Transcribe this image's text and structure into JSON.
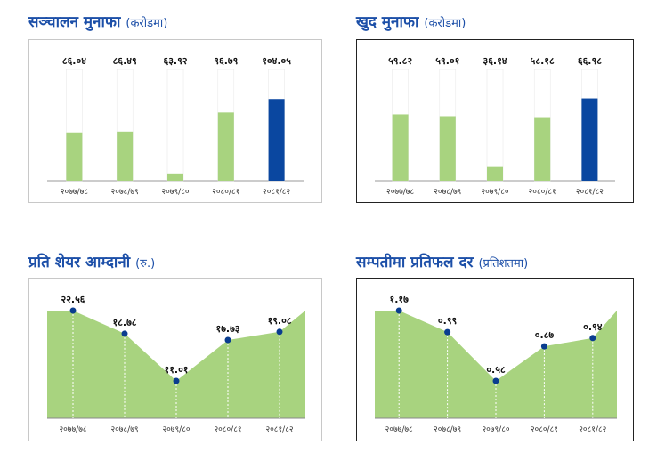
{
  "colors": {
    "title": "#1c4fa8",
    "green": "#a8d37f",
    "blue": "#0a47a0",
    "dot": "#0a3d8f"
  },
  "chart_data": [
    {
      "type": "bar",
      "title": "सञ्चालन मुनाफा",
      "subtitle": "(करोडमा)",
      "categories": [
        "२०७७/७८",
        "२०७८/७९",
        "२०७९/८०",
        "२०८०/८१",
        "२०८१/८२"
      ],
      "values": [
        86.04,
        86.49,
        63.92,
        96.79,
        104.05
      ],
      "labels": [
        "८६.०४",
        "८६.४९",
        "६३.९२",
        "९६.७९",
        "१०४.०५"
      ],
      "ylim": [
        60,
        120
      ],
      "highlight_last": true
    },
    {
      "type": "bar",
      "title": "खुद मुनाफा",
      "subtitle": "(करोडमा)",
      "categories": [
        "२०७७/७८",
        "२०७८/७९",
        "२०७९/८०",
        "२०८०/८१",
        "२०८१/८२"
      ],
      "values": [
        59.82,
        59.01,
        36.14,
        58.18,
        66.98
      ],
      "labels": [
        "५९.८२",
        "५९.०१",
        "३६.१४",
        "५८.१८",
        "६६.९८"
      ],
      "ylim": [
        30,
        80
      ],
      "highlight_last": true
    },
    {
      "type": "area",
      "title": "प्रति शेयर आम्दानी",
      "subtitle": "(रु.)",
      "categories": [
        "२०७७/७८",
        "२०७८/७९",
        "२०७९/८०",
        "२०८०/८१",
        "२०८१/८२"
      ],
      "values": [
        22.56,
        18.78,
        11.01,
        17.73,
        19.08
      ],
      "labels": [
        "२२.५६",
        "१८.७८",
        "११.०१",
        "१७.७३",
        "१९.०८"
      ],
      "ylim": [
        0,
        28
      ]
    },
    {
      "type": "area",
      "title": "सम्पतीमा प्रतिफल दर",
      "subtitle": "(प्रतिशतमा)",
      "categories": [
        "२०७७/७८",
        "२०७८/७९",
        "२०७९/८०",
        "२०८०/८१",
        "२०८१/८२"
      ],
      "values": [
        1.17,
        0.99,
        0.58,
        0.87,
        0.94
      ],
      "labels": [
        "१.१७",
        "०.९९",
        "०.५८",
        "०.८७",
        "०.९४"
      ],
      "ylim": [
        0,
        1.4
      ]
    }
  ]
}
